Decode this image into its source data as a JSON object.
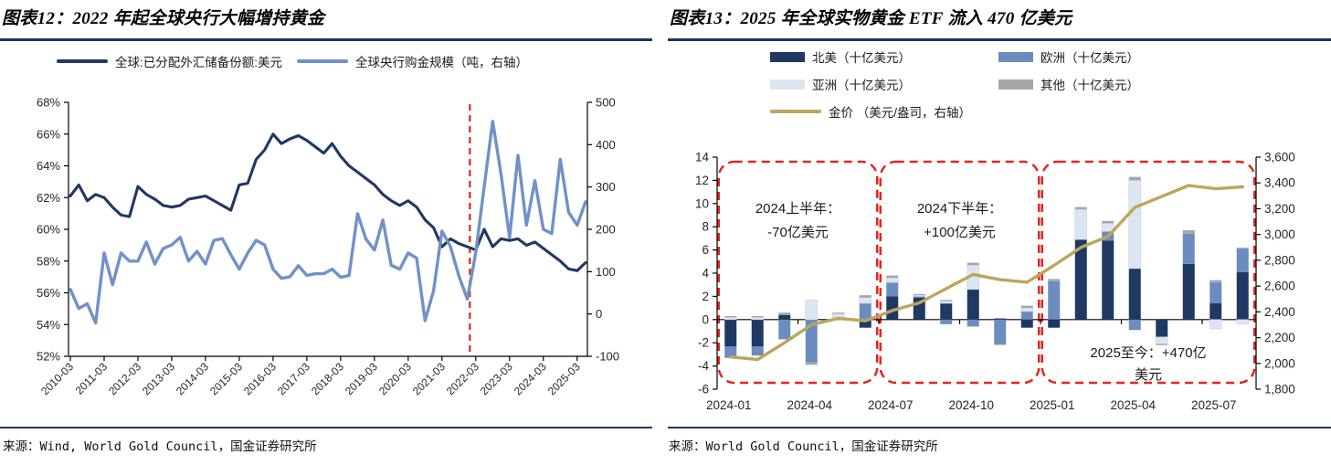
{
  "page": {
    "background": "#ffffff"
  },
  "colors": {
    "rule_navy": "#17375e",
    "navy": "#1f3864",
    "steel_blue": "#7191c8",
    "medium_blue": "#6b8cbe",
    "pale_blue": "#dce6f2",
    "gray": "#a6a6a6",
    "gold": "#bda55f",
    "red_dashed": "#e0261f",
    "axis_black": "#000000",
    "tick_text": "#262626"
  },
  "panels": {
    "left": {
      "title": "图表12：2022 年起全球央行大幅增持黄金",
      "source": "来源：Wind, World Gold Council，国金证券研究所"
    },
    "right": {
      "title": "图表13：2025 年全球实物黄金 ETF 流入 470 亿美元",
      "source": "来源：World Gold Council，国金证券研究所"
    }
  },
  "chart_data": [
    {
      "type": "line",
      "title": "2022 年起全球央行大幅增持黄金",
      "x_note": "quarterly, 2010Q1 - 2025Q2",
      "x_tick_labels": [
        "2010-03",
        "2011-03",
        "2012-03",
        "2013-03",
        "2014-03",
        "2015-03",
        "2016-03",
        "2017-03",
        "2018-03",
        "2019-03",
        "2020-03",
        "2021-03",
        "2022-03",
        "2023-03",
        "2024-03",
        "2025-03"
      ],
      "points_per_tick": 4,
      "ylim_left": [
        52,
        68
      ],
      "y_left_tick_labels": [
        "68%",
        "66%",
        "64%",
        "62%",
        "60%",
        "58%",
        "56%",
        "54%",
        "52%"
      ],
      "y_left_tick_step": 2,
      "ylim_right": [
        -100,
        500
      ],
      "y_right_tick_labels": [
        "500",
        "400",
        "300",
        "200",
        "100",
        "0",
        "-100"
      ],
      "y_right_tick_step": 100,
      "grid": false,
      "legend_position": "top",
      "vline": {
        "at_point_index": 47.3,
        "style": "dashed",
        "color": "#e0261f",
        "meaning": "2022 年初"
      },
      "series": [
        {
          "name": "全球:已分配外汇储备份额:美元",
          "axis": "left",
          "color": "#1f3864",
          "width": 3.1,
          "values": [
            62.1,
            62.8,
            61.8,
            62.2,
            62.0,
            61.4,
            60.9,
            60.8,
            62.7,
            62.2,
            61.9,
            61.5,
            61.4,
            61.5,
            61.9,
            62.0,
            62.1,
            61.8,
            61.5,
            61.2,
            62.8,
            62.9,
            64.4,
            65.0,
            66.0,
            65.4,
            65.7,
            65.9,
            65.6,
            65.2,
            64.8,
            65.4,
            64.6,
            64.0,
            63.6,
            63.2,
            62.8,
            62.2,
            61.8,
            61.5,
            61.8,
            61.4,
            60.6,
            60.1,
            58.9,
            59.4,
            59.1,
            58.9,
            58.7,
            60.0,
            58.9,
            59.4,
            59.3,
            59.4,
            59.0,
            59.2,
            58.8,
            58.4,
            58.0,
            57.5,
            57.4,
            57.9
          ]
        },
        {
          "name": "全球央行购金规模（吨，右轴）",
          "axis": "right",
          "color": "#7191c8",
          "width": 3.4,
          "values": [
            58,
            13,
            24,
            -21,
            144,
            69,
            144,
            125,
            125,
            170,
            118,
            155,
            163,
            181,
            125,
            148,
            118,
            174,
            178,
            140,
            106,
            144,
            174,
            163,
            106,
            84,
            88,
            114,
            91,
            95,
            95,
            106,
            87,
            91,
            237,
            177,
            151,
            222,
            115,
            106,
            144,
            132,
            -16,
            55,
            196,
            159,
            90,
            35,
            145,
            300,
            455,
            330,
            180,
            375,
            210,
            315,
            200,
            190,
            365,
            240,
            210,
            265
          ]
        }
      ],
      "legend": [
        {
          "label": "全球:已分配外汇储备份额:美元",
          "color": "#1f3864",
          "swatch": "line"
        },
        {
          "label": "全球央行购金规模（吨，右轴）",
          "color": "#7191c8",
          "swatch": "line"
        }
      ]
    },
    {
      "type": "bar",
      "subtype": "stacked-with-line",
      "title": "2025 年全球实物黄金 ETF 流入 470 亿美元",
      "categories": [
        "2024-01",
        "2024-02",
        "2024-03",
        "2024-04",
        "2024-05",
        "2024-06",
        "2024-07",
        "2024-08",
        "2024-09",
        "2024-10",
        "2024-11",
        "2024-12",
        "2025-01",
        "2025-02",
        "2025-03",
        "2025-04",
        "2025-05",
        "2025-06",
        "2025-07",
        "2025-08"
      ],
      "x_tick_labels": [
        "2024-01",
        "2024-04",
        "2024-07",
        "2024-10",
        "2025-01",
        "2025-04",
        "2025-07"
      ],
      "x_tick_every": 3,
      "ylim_left": [
        -6,
        14
      ],
      "y_left_tick_labels": [
        "14",
        "12",
        "10",
        "8",
        "6",
        "4",
        "2",
        "0",
        "-2",
        "-4",
        "-6"
      ],
      "y_left_tick_step": 2,
      "ylim_right": [
        1800,
        3600
      ],
      "y_right_tick_labels": [
        "3,600",
        "3,400",
        "3,200",
        "3,000",
        "2,800",
        "2,600",
        "2,400",
        "2,200",
        "2,000",
        "1,800"
      ],
      "y_right_tick_step": 200,
      "grid": false,
      "series": [
        {
          "name": "北美（十亿美元）",
          "type": "bar",
          "axis": "left",
          "color": "#1f3864",
          "values": [
            -2.3,
            -2.3,
            0.4,
            0.0,
            0.0,
            -0.7,
            2.0,
            1.9,
            1.4,
            2.6,
            0.1,
            -0.7,
            -0.7,
            6.9,
            6.8,
            4.4,
            -1.5,
            4.8,
            1.4,
            4.1
          ]
        },
        {
          "name": "欧洲（十亿美元）",
          "type": "bar",
          "axis": "left",
          "color": "#6b8cbe",
          "values": [
            -1.0,
            -0.8,
            -1.7,
            -3.7,
            0.0,
            1.4,
            1.2,
            0.1,
            -0.4,
            -0.6,
            -2.1,
            0.7,
            3.3,
            0.0,
            0.8,
            -0.9,
            0.0,
            2.6,
            1.8,
            2.0
          ]
        },
        {
          "name": "亚洲（十亿美元）",
          "type": "bar",
          "axis": "left",
          "color": "#dce6f2",
          "values": [
            0.2,
            0.2,
            0.0,
            1.7,
            0.5,
            0.5,
            0.4,
            0.1,
            0.2,
            2.1,
            0.0,
            0.3,
            0.0,
            2.6,
            0.7,
            7.6,
            -0.6,
            0.0,
            -0.8,
            -0.4
          ]
        },
        {
          "name": "其他（十亿美元）",
          "type": "bar",
          "axis": "left",
          "color": "#a6a6a6",
          "values": [
            0.1,
            0.1,
            0.2,
            -0.2,
            0.1,
            0.2,
            0.2,
            0.1,
            0.1,
            0.2,
            -0.1,
            0.2,
            0.2,
            0.2,
            0.2,
            0.3,
            -0.1,
            0.3,
            0.2,
            0.1
          ]
        },
        {
          "name": "金价 （美元/盎司，右轴）",
          "type": "line",
          "axis": "right",
          "color": "#bda55f",
          "width": 3.4,
          "values": [
            2050,
            2030,
            2160,
            2300,
            2350,
            2330,
            2410,
            2470,
            2580,
            2690,
            2650,
            2630,
            2760,
            2900,
            2985,
            3210,
            3295,
            3380,
            3355,
            3370
          ]
        }
      ],
      "annotations": [
        {
          "text_lines": [
            "2024上半年：",
            "-70亿美元"
          ],
          "box_month_range": [
            0,
            5
          ],
          "text_pos": "top"
        },
        {
          "text_lines": [
            "2024下半年：",
            "+100亿美元"
          ],
          "box_month_range": [
            6,
            11
          ],
          "text_pos": "top"
        },
        {
          "text_lines": [
            "2025至今：+470亿",
            "美元"
          ],
          "box_month_range": [
            12,
            19
          ],
          "text_pos": "bottom"
        }
      ],
      "legend": [
        {
          "label": "北美（十亿美元）",
          "color": "#1f3864",
          "swatch": "rect"
        },
        {
          "label": "欧洲（十亿美元）",
          "color": "#6b8cbe",
          "swatch": "rect"
        },
        {
          "label": "亚洲（十亿美元）",
          "color": "#dce6f2",
          "swatch": "rect"
        },
        {
          "label": "其他（十亿美元）",
          "color": "#a6a6a6",
          "swatch": "rect"
        },
        {
          "label": "金价 （美元/盎司，右轴）",
          "color": "#bda55f",
          "swatch": "line"
        }
      ]
    }
  ]
}
